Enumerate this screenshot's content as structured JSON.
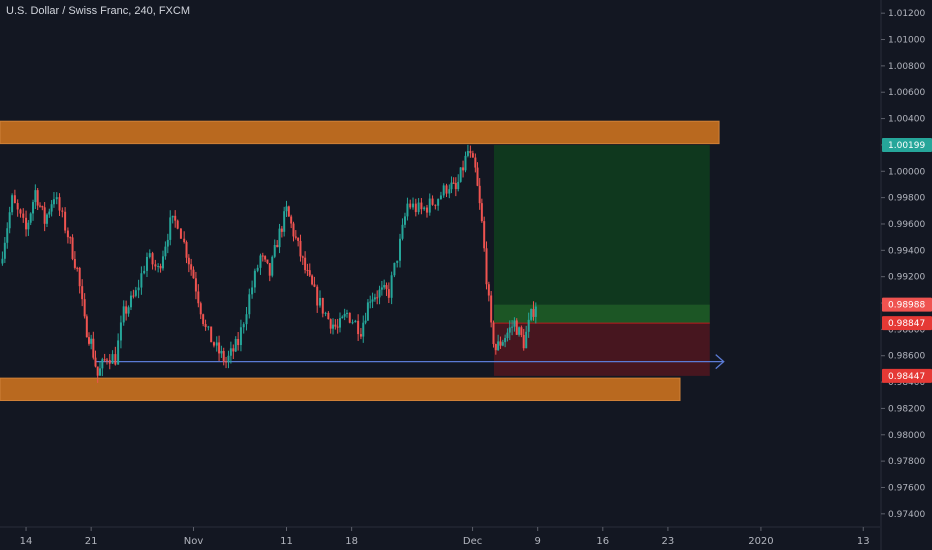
{
  "header": {
    "title": "U.S. Dollar / Swiss Franc, 240, FXCM"
  },
  "chart_data": {
    "type": "candlestick",
    "symbol": "USDCHF",
    "timeframe": "240",
    "ylim": [
      0.973,
      1.013
    ],
    "y_ticks": [
      "1.01200",
      "1.01000",
      "1.00800",
      "1.00600",
      "1.00400",
      "1.00200",
      "1.00000",
      "0.99800",
      "0.99600",
      "0.99400",
      "0.99200",
      "0.99000",
      "0.98800",
      "0.98600",
      "0.98400",
      "0.98200",
      "0.98000",
      "0.97800",
      "0.97600",
      "0.97400"
    ],
    "x_ticks": [
      {
        "label": "14",
        "day": 0
      },
      {
        "label": "21",
        "day": 7
      },
      {
        "label": "Nov",
        "day": 18
      },
      {
        "label": "11",
        "day": 28
      },
      {
        "label": "18",
        "day": 35
      },
      {
        "label": "Dec",
        "day": 48
      },
      {
        "label": "9",
        "day": 55
      },
      {
        "label": "16",
        "day": 62
      },
      {
        "label": "23",
        "day": 69
      },
      {
        "label": "2020",
        "day": 79
      },
      {
        "label": "13",
        "day": 90
      }
    ],
    "x_range_days": [
      -2.8,
      91.8
    ],
    "price_tags": [
      {
        "value": "1.00199",
        "price": 1.00199,
        "color": "#26a69a"
      },
      {
        "value": "0.98988",
        "price": 0.98988,
        "color": "#ef5350"
      },
      {
        "value": "0.98847",
        "price": 0.98847,
        "color": "#e53935"
      },
      {
        "value": "0.98447",
        "price": 0.98447,
        "color": "#e53935"
      }
    ],
    "zones": [
      {
        "name": "resistance-zone",
        "day_start": -2.8,
        "day_end": 74.5,
        "price_high": 1.0038,
        "price_low": 1.0021,
        "color": "#c8701f"
      },
      {
        "name": "support-zone",
        "day_start": -2.8,
        "day_end": 70.3,
        "price_high": 0.9843,
        "price_low": 0.9826,
        "color": "#c8701f"
      }
    ],
    "position": {
      "type": "long",
      "day_start": 50.3,
      "day_end": 73.5,
      "entry": 0.98988,
      "target": 1.00199,
      "stop": 0.98447,
      "stop_zone_top": 0.98847
    },
    "horizontal_line": {
      "price": 0.98555,
      "day_start": 7.5,
      "day_end": 75.0,
      "color": "#5b7bd5"
    },
    "series_path": [
      [
        -2.8,
        0.993
      ],
      [
        -1.5,
        0.9978
      ],
      [
        0.0,
        0.9955
      ],
      [
        1.0,
        0.9985
      ],
      [
        2.0,
        0.9962
      ],
      [
        3.0,
        0.9982
      ],
      [
        4.5,
        0.9952
      ],
      [
        5.5,
        0.9925
      ],
      [
        6.3,
        0.9885
      ],
      [
        7.0,
        0.987
      ],
      [
        7.7,
        0.9845
      ],
      [
        8.7,
        0.986
      ],
      [
        9.6,
        0.9858
      ],
      [
        10.5,
        0.9892
      ],
      [
        11.8,
        0.9907
      ],
      [
        13.0,
        0.9935
      ],
      [
        14.2,
        0.9925
      ],
      [
        15.5,
        0.996
      ],
      [
        16.3,
        0.9962
      ],
      [
        17.0,
        0.9945
      ],
      [
        18.0,
        0.992
      ],
      [
        19.3,
        0.988
      ],
      [
        20.5,
        0.9865
      ],
      [
        21.5,
        0.9855
      ],
      [
        22.8,
        0.987
      ],
      [
        24.0,
        0.9905
      ],
      [
        25.2,
        0.9935
      ],
      [
        26.2,
        0.9922
      ],
      [
        27.0,
        0.9947
      ],
      [
        28.0,
        0.997
      ],
      [
        29.0,
        0.9948
      ],
      [
        30.0,
        0.9925
      ],
      [
        31.0,
        0.9907
      ],
      [
        32.5,
        0.9888
      ],
      [
        33.5,
        0.988
      ],
      [
        34.5,
        0.9892
      ],
      [
        36.0,
        0.988
      ],
      [
        37.0,
        0.9905
      ],
      [
        38.0,
        0.9908
      ],
      [
        39.0,
        0.9908
      ],
      [
        40.2,
        0.9945
      ],
      [
        41.0,
        0.9975
      ],
      [
        42.5,
        0.997
      ],
      [
        44.0,
        0.9978
      ],
      [
        45.5,
        0.999
      ],
      [
        46.2,
        0.9985
      ],
      [
        47.5,
        1.0015
      ],
      [
        48.3,
        1.0
      ],
      [
        49.0,
        0.996
      ],
      [
        49.5,
        0.992
      ],
      [
        50.0,
        0.988
      ],
      [
        50.5,
        0.9865
      ],
      [
        51.5,
        0.9875
      ],
      [
        52.5,
        0.9885
      ],
      [
        53.5,
        0.987
      ],
      [
        54.3,
        0.989
      ],
      [
        54.8,
        0.99
      ]
    ]
  }
}
